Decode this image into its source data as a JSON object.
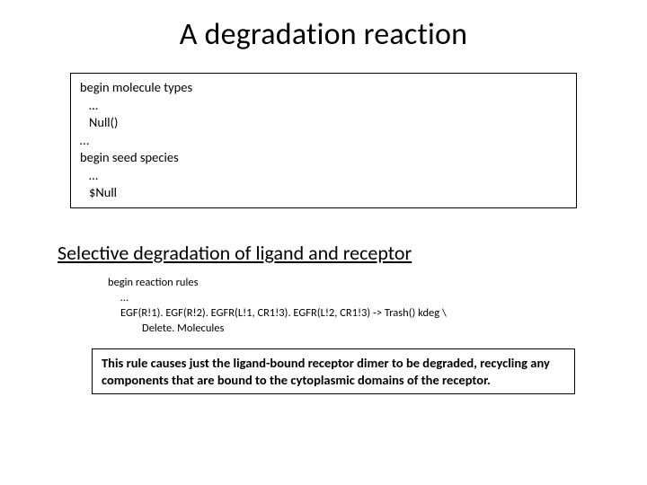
{
  "title": "A degradation reaction",
  "codebox1": {
    "l1": "begin molecule types",
    "l2": "…",
    "l3": "Null()",
    "l4": "…",
    "l5": "begin seed species",
    "l6": "…",
    "l7": "$Null"
  },
  "subhead": "Selective degradation of ligand and receptor",
  "codebox2": {
    "l1": "begin reaction rules",
    "l2": "…",
    "l3": "EGF(R!1). EGF(R!2). EGFR(L!1, CR1!3). EGFR(L!2, CR1!3) -> Trash() kdeg \\",
    "l4": "Delete. Molecules"
  },
  "explain": "This rule causes just the ligand-bound receptor dimer to be degraded, recycling any components that are bound to the cytoplasmic domains of the receptor."
}
